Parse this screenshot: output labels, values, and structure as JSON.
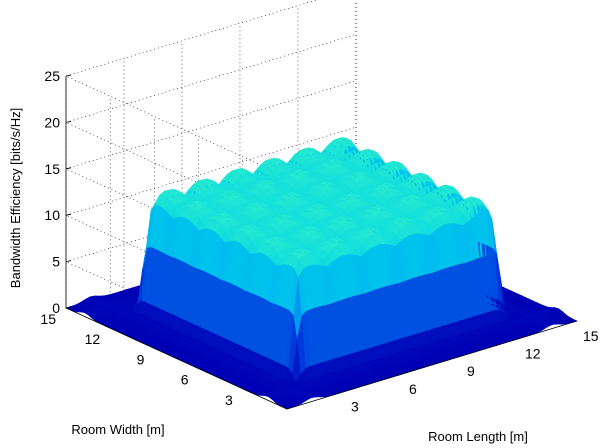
{
  "chart_data": {
    "type": "surface3d",
    "title": "",
    "xlabel": "Room Length [m]",
    "ylabel": "Room Width [m]",
    "zlabel": "Bandwidth Efficiency [bits/s/Hz]",
    "x_ticks": [
      "3",
      "6",
      "9",
      "12",
      "15"
    ],
    "y_ticks": [
      "3",
      "6",
      "9",
      "12",
      "15"
    ],
    "z_ticks": [
      "0",
      "5",
      "10",
      "15",
      "20",
      "25"
    ],
    "xlim": [
      0,
      15
    ],
    "ylim": [
      0,
      15
    ],
    "zlim": [
      0,
      25
    ],
    "grid": true,
    "colormap": [
      "#0000b4",
      "#0038dc",
      "#0090f0",
      "#00d0ec",
      "#30f0c8"
    ],
    "surface": {
      "plateau_region": {
        "x": [
          2.2,
          12.8
        ],
        "y": [
          2.2,
          12.8
        ]
      },
      "plateau_level_min": 11.5,
      "plateau_level_max": 13.0,
      "bump_grid": 6,
      "edge_spike_level": 5.5,
      "floor_level": 0
    }
  }
}
